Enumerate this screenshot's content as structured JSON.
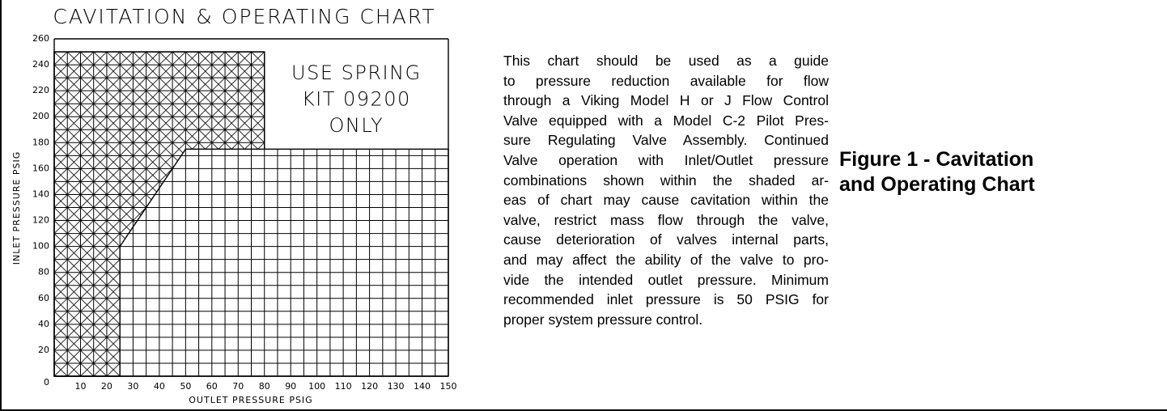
{
  "chart_data": {
    "type": "region",
    "title": "CAVITATION & OPERATING CHART",
    "xlabel": "OUTLET PRESSURE PSIG",
    "ylabel": "INLET PRESSURE PSIG",
    "xlim": [
      0,
      150
    ],
    "ylim": [
      0,
      260
    ],
    "xticks": [
      10,
      20,
      30,
      40,
      50,
      60,
      70,
      80,
      90,
      100,
      110,
      120,
      130,
      140,
      150
    ],
    "yticks": [
      0,
      20,
      40,
      60,
      80,
      100,
      120,
      140,
      160,
      180,
      200,
      220,
      240,
      260
    ],
    "grid": true,
    "operating_region": {
      "x": [
        0,
        150,
        150,
        80,
        80,
        0
      ],
      "y": [
        0,
        0,
        175,
        175,
        250,
        250
      ]
    },
    "cavitation_region": {
      "x": [
        0,
        25,
        25,
        50,
        80,
        80,
        0
      ],
      "y": [
        0,
        0,
        100,
        175,
        175,
        250,
        250
      ]
    },
    "annotation": [
      "USE SPRING",
      "KIT 09200",
      "ONLY"
    ]
  },
  "description": [
    "This chart should be used as a guide",
    "to pressure reduction available for flow",
    "through a Viking Model H or J Flow Control",
    "Valve equipped with a Model C-2 Pilot Pres-",
    "sure Regulating Valve Assembly. Continued",
    "Valve operation with Inlet/Outlet pressure",
    "combinations shown within the shaded ar-",
    "eas of chart may cause cavitation within the",
    "valve, restrict mass flow through the valve,",
    "cause deterioration of valves internal parts,",
    "and may affect the ability of the valve to pro-",
    "vide the intended outlet pressure. Minimum",
    "recommended inlet pressure is 50 PSIG for",
    "proper system pressure control."
  ],
  "caption": [
    "Figure 1 - Cavitation",
    "and Operating Chart"
  ]
}
